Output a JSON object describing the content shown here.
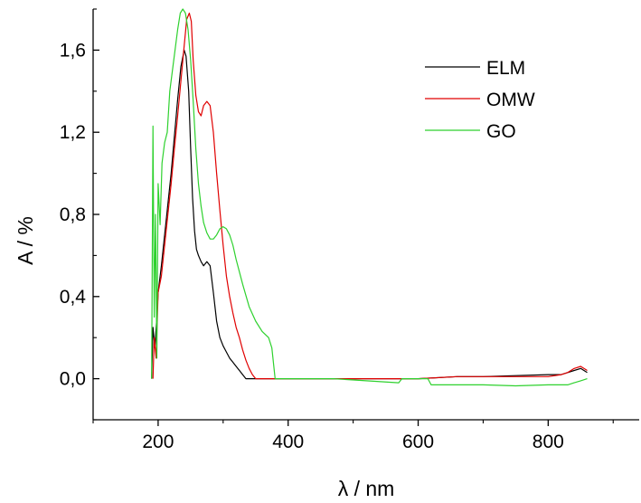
{
  "chart_data": {
    "type": "line",
    "title": "",
    "xlabel": "λ / nm",
    "ylabel": "A / %",
    "xlim": [
      100,
      940
    ],
    "ylim": [
      -0.2,
      1.8
    ],
    "x_ticks": [
      200,
      400,
      600,
      800
    ],
    "x_tick_labels": [
      "200",
      "400",
      "600",
      "800"
    ],
    "y_ticks": [
      0.0,
      0.4,
      0.8,
      1.2,
      1.6
    ],
    "y_tick_labels": [
      "0,0",
      "0,4",
      "0,8",
      "1,2",
      "1,6"
    ],
    "grid": false,
    "legend_position": "top-right",
    "series": [
      {
        "name": "ELM",
        "color": "#000000",
        "x": [
          190,
          192,
          195,
          198,
          200,
          205,
          210,
          215,
          220,
          225,
          230,
          235,
          240,
          243,
          247,
          250,
          253,
          256,
          259,
          262,
          266,
          270,
          275,
          280,
          285,
          290,
          295,
          300,
          305,
          310,
          315,
          320,
          325,
          330,
          335,
          340,
          400,
          500,
          600,
          660,
          700,
          750,
          800,
          820,
          830,
          840,
          850,
          860
        ],
        "y": [
          0.0,
          0.25,
          0.15,
          0.3,
          0.42,
          0.55,
          0.7,
          0.85,
          1.0,
          1.18,
          1.36,
          1.52,
          1.6,
          1.57,
          1.4,
          1.12,
          0.88,
          0.72,
          0.63,
          0.6,
          0.57,
          0.55,
          0.57,
          0.55,
          0.42,
          0.28,
          0.2,
          0.16,
          0.13,
          0.1,
          0.08,
          0.06,
          0.04,
          0.02,
          0.0,
          0.0,
          0.0,
          0.0,
          0.0,
          0.01,
          0.01,
          0.015,
          0.02,
          0.02,
          0.03,
          0.04,
          0.05,
          0.03
        ]
      },
      {
        "name": "OMW",
        "color": "#e00000",
        "x": [
          192,
          194,
          197,
          200,
          205,
          210,
          215,
          220,
          225,
          230,
          235,
          240,
          244,
          248,
          251,
          254,
          258,
          262,
          266,
          270,
          275,
          280,
          285,
          290,
          295,
          300,
          305,
          310,
          315,
          320,
          325,
          330,
          335,
          340,
          345,
          350,
          400,
          500,
          600,
          660,
          700,
          750,
          800,
          820,
          830,
          840,
          850,
          860
        ],
        "y": [
          0.0,
          0.2,
          0.1,
          0.42,
          0.5,
          0.65,
          0.8,
          0.95,
          1.12,
          1.28,
          1.45,
          1.62,
          1.75,
          1.78,
          1.74,
          1.55,
          1.38,
          1.3,
          1.28,
          1.33,
          1.35,
          1.33,
          1.2,
          1.0,
          0.82,
          0.65,
          0.5,
          0.4,
          0.32,
          0.25,
          0.2,
          0.14,
          0.09,
          0.05,
          0.02,
          0.0,
          0.0,
          0.0,
          0.0,
          0.01,
          0.01,
          0.01,
          0.01,
          0.02,
          0.03,
          0.05,
          0.06,
          0.04
        ]
      },
      {
        "name": "GO",
        "color": "#2ed12e",
        "x": [
          190,
          192,
          194,
          196,
          198,
          200,
          203,
          206,
          210,
          214,
          218,
          222,
          226,
          230,
          234,
          238,
          242,
          246,
          250,
          254,
          258,
          262,
          266,
          270,
          275,
          280,
          285,
          290,
          295,
          300,
          305,
          310,
          315,
          320,
          330,
          340,
          350,
          360,
          370,
          375,
          380,
          400,
          470,
          520,
          570,
          575,
          600,
          615,
          620,
          660,
          700,
          750,
          800,
          830,
          840,
          850,
          860
        ],
        "y": [
          0.0,
          1.23,
          0.3,
          0.8,
          0.1,
          0.95,
          0.75,
          1.05,
          1.15,
          1.2,
          1.4,
          1.5,
          1.6,
          1.7,
          1.78,
          1.8,
          1.78,
          1.7,
          1.55,
          1.35,
          1.12,
          0.95,
          0.84,
          0.76,
          0.71,
          0.68,
          0.68,
          0.7,
          0.73,
          0.74,
          0.73,
          0.7,
          0.65,
          0.58,
          0.46,
          0.35,
          0.28,
          0.23,
          0.2,
          0.15,
          0.0,
          0.0,
          0.0,
          -0.01,
          -0.02,
          0.0,
          0.0,
          0.0,
          -0.03,
          -0.03,
          -0.03,
          -0.035,
          -0.03,
          -0.03,
          -0.02,
          -0.01,
          0.0
        ]
      }
    ]
  }
}
